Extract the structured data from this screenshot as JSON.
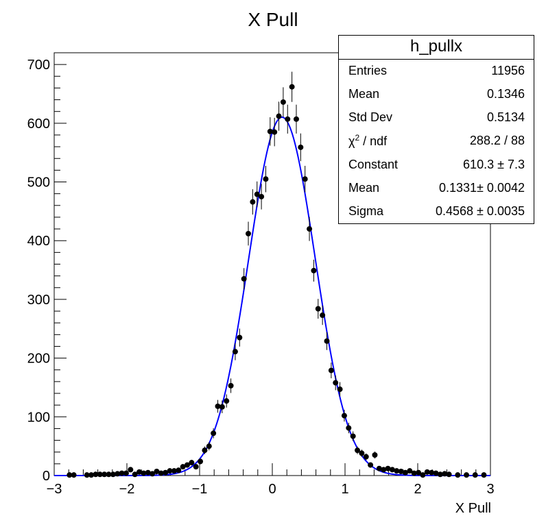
{
  "chart_data": {
    "type": "scatter",
    "title": "X Pull",
    "xlabel": "X Pull",
    "ylabel": "",
    "xlim": [
      -3,
      3
    ],
    "ylim": [
      0,
      720
    ],
    "x_ticks": [
      "−3",
      "−2",
      "−1",
      "0",
      "1",
      "2",
      "3"
    ],
    "y_ticks": [
      "0",
      "100",
      "200",
      "300",
      "400",
      "500",
      "600",
      "700"
    ],
    "series": [
      {
        "style": "markers-with-error-bars",
        "color": "#000000",
        "x": [
          -2.79,
          -2.73,
          -2.55,
          -2.49,
          -2.43,
          -2.37,
          -2.31,
          -2.25,
          -2.19,
          -2.13,
          -2.07,
          -2.01,
          -1.95,
          -1.89,
          -1.83,
          -1.77,
          -1.71,
          -1.65,
          -1.59,
          -1.53,
          -1.47,
          -1.41,
          -1.35,
          -1.29,
          -1.23,
          -1.17,
          -1.11,
          -1.05,
          -0.99,
          -0.93,
          -0.87,
          -0.81,
          -0.75,
          -0.69,
          -0.63,
          -0.57,
          -0.51,
          -0.45,
          -0.39,
          -0.33,
          -0.27,
          -0.21,
          -0.15,
          -0.09,
          -0.03,
          0.03,
          0.09,
          0.15,
          0.21,
          0.27,
          0.33,
          0.39,
          0.45,
          0.51,
          0.57,
          0.63,
          0.69,
          0.75,
          0.81,
          0.87,
          0.93,
          0.99,
          1.05,
          1.11,
          1.17,
          1.23,
          1.29,
          1.35,
          1.41,
          1.47,
          1.53,
          1.59,
          1.65,
          1.71,
          1.77,
          1.83,
          1.89,
          1.95,
          2.01,
          2.07,
          2.13,
          2.19,
          2.25,
          2.31,
          2.37,
          2.43,
          2.55,
          2.67,
          2.79,
          2.91
        ],
        "y": [
          1,
          1,
          1,
          1,
          2,
          2,
          2,
          2,
          2,
          3,
          4,
          4,
          10,
          2,
          6,
          4,
          5,
          3,
          7,
          4,
          5,
          8,
          8,
          9,
          15,
          18,
          22,
          15,
          24,
          43,
          50,
          72,
          118,
          117,
          127,
          153,
          211,
          235,
          335,
          412,
          466,
          479,
          475,
          505,
          586,
          585,
          612,
          636,
          607,
          662,
          607,
          559,
          505,
          420,
          349,
          284,
          273,
          229,
          179,
          158,
          147,
          102,
          81,
          67,
          43,
          38,
          32,
          18,
          35,
          12,
          10,
          12,
          10,
          8,
          7,
          5,
          8,
          4,
          5,
          1,
          6,
          5,
          4,
          2,
          3,
          2,
          1,
          1,
          1,
          1
        ]
      },
      {
        "name": "Gaussian fit",
        "style": "line",
        "color": "#0000ff",
        "function": "gaus",
        "constant": 610.3,
        "mean": 0.1331,
        "sigma": 0.4568
      }
    ],
    "grid": false,
    "legend": "none"
  },
  "stats_box": {
    "title": "h_pullx",
    "rows": [
      {
        "label": "Entries",
        "value": "11956"
      },
      {
        "label": "Mean",
        "value": "0.1346"
      },
      {
        "label": "Std Dev",
        "value": "0.5134"
      },
      {
        "label_main": "χ",
        "label_sup": "2",
        "label_rest": " / ndf",
        "value": "288.2 / 88"
      },
      {
        "label": "Constant",
        "value": "610.3 ± 7.3"
      },
      {
        "label": "Mean",
        "value": "0.1331± 0.0042"
      },
      {
        "label": "Sigma",
        "value": "0.4568 ± 0.0035"
      }
    ]
  }
}
